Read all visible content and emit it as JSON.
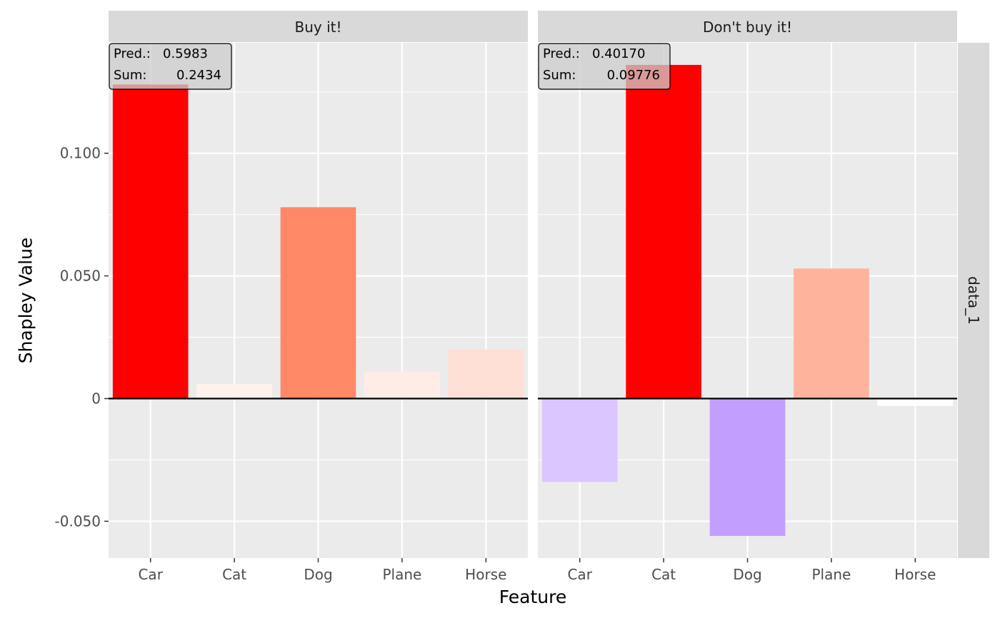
{
  "chart_data": {
    "type": "bar",
    "title": "",
    "xlabel": "Feature",
    "ylabel": "Shapley Value",
    "ylim": [
      -0.065,
      0.145
    ],
    "yticks": [
      -0.05,
      0,
      0.05,
      0.1
    ],
    "ytick_labels": [
      "-0.050",
      "0",
      "0.050",
      "0.100"
    ],
    "grid": true,
    "legend": "none",
    "row_label": "data_1",
    "categories": [
      "Car",
      "Cat",
      "Dog",
      "Plane",
      "Horse"
    ],
    "panels": [
      {
        "name": "Buy it!",
        "values": [
          0.128,
          0.006,
          0.078,
          0.011,
          0.02
        ],
        "colors": [
          "#ff0000",
          "#fff1ec",
          "#ff8866",
          "#ffece6",
          "#fddfd5"
        ],
        "pred_label": "Pred.:",
        "pred_value": "0.5983",
        "sum_label": "Sum:",
        "sum_value": "0.2434"
      },
      {
        "name": "Don't buy it!",
        "values": [
          -0.034,
          0.136,
          -0.056,
          0.053,
          -0.003
        ],
        "colors": [
          "#dcc6ff",
          "#ff0000",
          "#c29eff",
          "#feb49c",
          "#ffffff"
        ],
        "pred_label": "Pred.:",
        "pred_value": "0.40170",
        "sum_label": "Sum:",
        "sum_value": "0.09776"
      }
    ]
  }
}
